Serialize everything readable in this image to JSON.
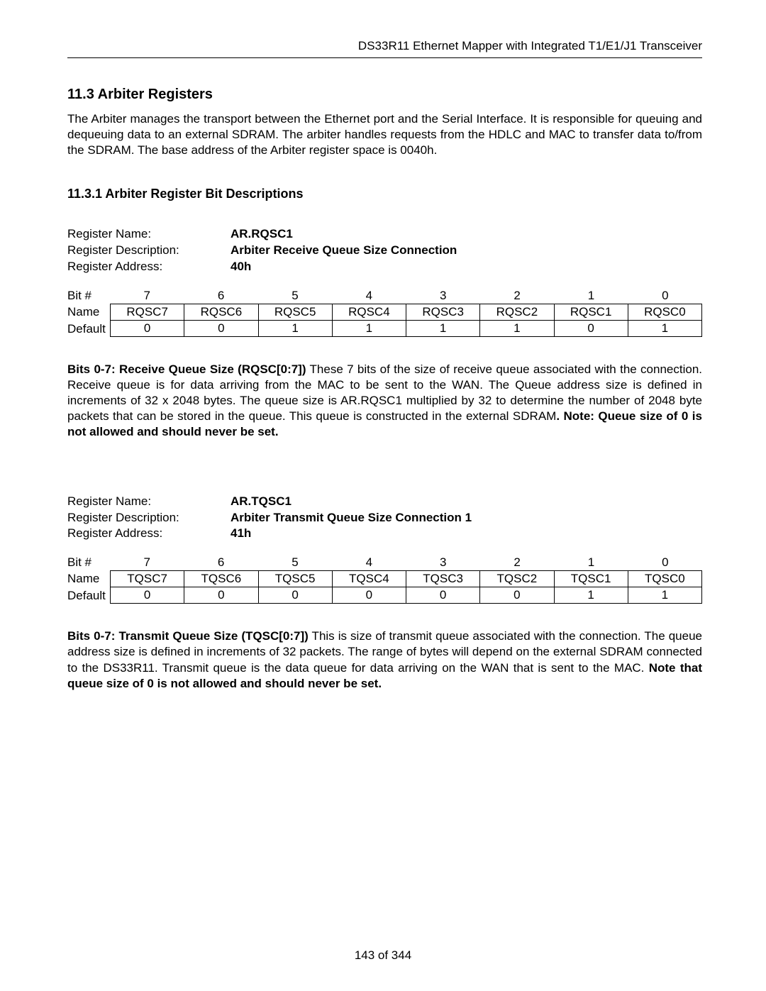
{
  "header": {
    "title": "DS33R11 Ethernet Mapper with Integrated T1/E1/J1 Transceiver"
  },
  "section": {
    "number": "11.3",
    "title": "Arbiter Registers",
    "intro": "The Arbiter manages the transport between the Ethernet port and the Serial Interface. It is responsible for queuing and dequeuing data to an external SDRAM. The arbiter handles requests from the HDLC and MAC to transfer data to/from the SDRAM. The base address of the Arbiter register space is 0040h."
  },
  "subsection": {
    "number": "11.3.1",
    "title": "Arbiter Register Bit Descriptions"
  },
  "registers": [
    {
      "meta": {
        "name_label": "Register Name:",
        "name_value": "AR.RQSC1",
        "desc_label": "Register Description:",
        "desc_value": "Arbiter  Receive Queue Size Connection",
        "addr_label": "Register Address:",
        "addr_value": "40h"
      },
      "table": {
        "bit_label": "Bit #",
        "name_label": "Name",
        "default_label": "Default",
        "bits": [
          "7",
          "6",
          "5",
          "4",
          "3",
          "2",
          "1",
          "0"
        ],
        "names": [
          "RQSC7",
          "RQSC6",
          "RQSC5",
          "RQSC4",
          "RQSC3",
          "RQSC2",
          "RQSC1",
          "RQSC0"
        ],
        "defaults": [
          "0",
          "0",
          "1",
          "1",
          "1",
          "1",
          "0",
          "1"
        ]
      },
      "desc": {
        "label": "Bits 0-7: Receive Queue Size (RQSC[0:7])",
        "text": " These 7 bits of the size of receive queue associated with the connection. Receive queue is for data arriving from the MAC to be sent to the WAN. The Queue address size is defined in increments of 32 x 2048 bytes.  The queue size is AR.RQSC1 multiplied by 32 to determine the number of 2048 byte packets that can be stored in the queue. This queue is constructed in the external SDRAM",
        "note": ". Note: Queue size of 0 is not allowed and should never be set."
      }
    },
    {
      "meta": {
        "name_label": "Register Name:",
        "name_value": "AR.TQSC1",
        "desc_label": "Register Description:",
        "desc_value": "Arbiter Transmit Queue Size Connection 1",
        "addr_label": "Register Address:",
        "addr_value": "41h"
      },
      "table": {
        "bit_label": "Bit #",
        "name_label": "Name",
        "default_label": "Default",
        "bits": [
          "7",
          "6",
          "5",
          "4",
          "3",
          "2",
          "1",
          "0"
        ],
        "names": [
          "TQSC7",
          "TQSC6",
          "TQSC5",
          "TQSC4",
          "TQSC3",
          "TQSC2",
          "TQSC1",
          "TQSC0"
        ],
        "defaults": [
          "0",
          "0",
          "0",
          "0",
          "0",
          "0",
          "1",
          "1"
        ]
      },
      "desc": {
        "label": "Bits 0-7: Transmit Queue Size (TQSC[0:7])",
        "text": "  This is size of transmit queue associated with the connection.  The queue address size is defined in increments of 32 packets. The range of bytes will depend on the external SDRAM connected to the DS33R11. Transmit queue is the data queue for data arriving on the WAN that is sent to the MAC. ",
        "note": "Note that queue size of 0 is not allowed and should never be set."
      }
    }
  ],
  "footer": {
    "page": "143 of 344"
  },
  "styling": {
    "bg": "#ffffff",
    "text": "#000000",
    "border": "#000000",
    "font_body": 17,
    "font_h2": 20,
    "font_h3": 18
  }
}
